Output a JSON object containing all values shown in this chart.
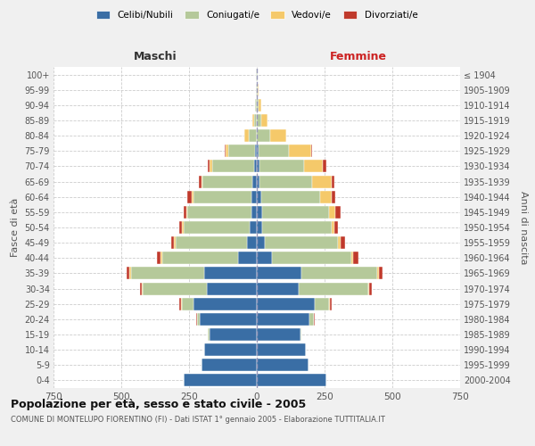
{
  "age_groups": [
    "0-4",
    "5-9",
    "10-14",
    "15-19",
    "20-24",
    "25-29",
    "30-34",
    "35-39",
    "40-44",
    "45-49",
    "50-54",
    "55-59",
    "60-64",
    "65-69",
    "70-74",
    "75-79",
    "80-84",
    "85-89",
    "90-94",
    "95-99",
    "100+"
  ],
  "birth_years": [
    "2000-2004",
    "1995-1999",
    "1990-1994",
    "1985-1989",
    "1980-1984",
    "1975-1979",
    "1970-1974",
    "1965-1969",
    "1960-1964",
    "1955-1959",
    "1950-1954",
    "1945-1949",
    "1940-1944",
    "1935-1939",
    "1930-1934",
    "1925-1929",
    "1920-1924",
    "1915-1919",
    "1910-1914",
    "1905-1909",
    "≤ 1904"
  ],
  "maschi": {
    "celibi": [
      270,
      205,
      195,
      175,
      210,
      235,
      185,
      195,
      70,
      35,
      25,
      20,
      20,
      15,
      10,
      5,
      0,
      0,
      0,
      0,
      0
    ],
    "coniugati": [
      0,
      0,
      0,
      5,
      10,
      40,
      235,
      270,
      280,
      265,
      245,
      235,
      215,
      185,
      155,
      100,
      30,
      10,
      5,
      2,
      2
    ],
    "vedovi": [
      0,
      0,
      0,
      0,
      0,
      5,
      5,
      5,
      5,
      5,
      5,
      5,
      5,
      5,
      10,
      10,
      15,
      5,
      2,
      0,
      0
    ],
    "divorziati": [
      0,
      0,
      0,
      0,
      5,
      5,
      5,
      10,
      15,
      10,
      10,
      10,
      15,
      10,
      5,
      5,
      0,
      0,
      0,
      0,
      0
    ]
  },
  "femmine": {
    "nubili": [
      255,
      190,
      180,
      160,
      195,
      215,
      155,
      165,
      55,
      30,
      20,
      20,
      15,
      10,
      10,
      5,
      0,
      0,
      0,
      0,
      0
    ],
    "coniugate": [
      0,
      0,
      0,
      5,
      15,
      50,
      255,
      280,
      295,
      270,
      255,
      245,
      220,
      195,
      165,
      115,
      50,
      15,
      5,
      3,
      2
    ],
    "vedove": [
      0,
      0,
      0,
      0,
      0,
      5,
      5,
      5,
      5,
      10,
      10,
      25,
      40,
      70,
      70,
      80,
      60,
      25,
      10,
      2,
      0
    ],
    "divorziate": [
      0,
      0,
      0,
      0,
      5,
      5,
      10,
      15,
      20,
      15,
      15,
      20,
      15,
      10,
      10,
      5,
      0,
      0,
      0,
      0,
      0
    ]
  },
  "colors": {
    "celibi": "#3a6ea5",
    "coniugati": "#b5c99a",
    "vedovi": "#f5c96a",
    "divorziati": "#c0392b"
  },
  "xlim": 750,
  "title": "Popolazione per età, sesso e stato civile - 2005",
  "subtitle": "COMUNE DI MONTELUPO FIORENTINO (FI) - Dati ISTAT 1° gennaio 2005 - Elaborazione TUTTITALIA.IT",
  "xlabel_left": "Maschi",
  "xlabel_right": "Femmine",
  "ylabel_left": "Fasce di età",
  "ylabel_right": "Anni di nascita",
  "bg_color": "#f0f0f0",
  "plot_bg": "#ffffff",
  "xticks": [
    -750,
    -500,
    -250,
    0,
    250,
    500,
    750
  ]
}
